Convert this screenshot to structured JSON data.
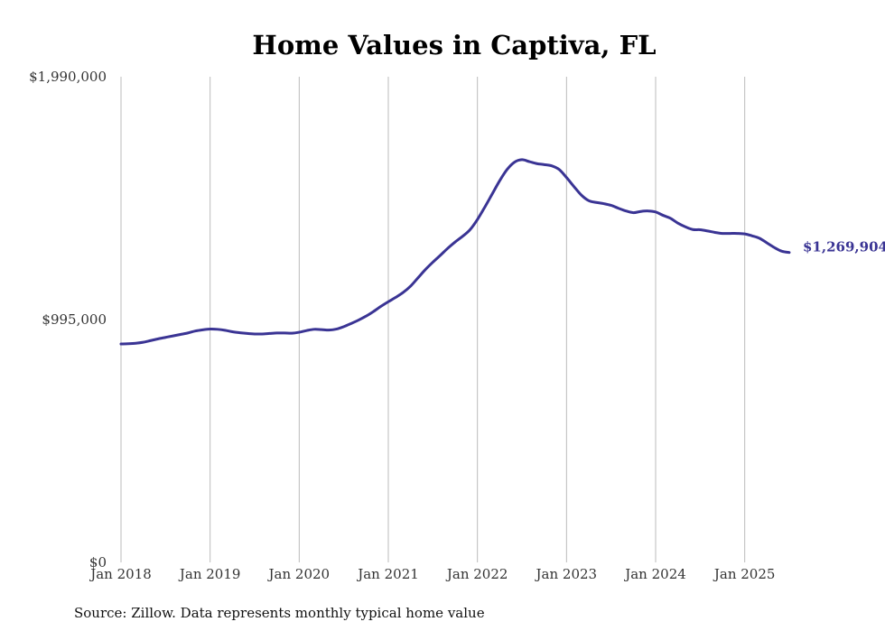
{
  "chart_data": {
    "type": "line",
    "title": "Home Values in Captiva, FL",
    "xlabel": "",
    "ylabel": "",
    "ylim": [
      0,
      1990000
    ],
    "y_ticks": [
      "$0",
      "$995,000",
      "$1,990,000"
    ],
    "y_tick_values": [
      0,
      995000,
      1990000
    ],
    "x_range": [
      "2018-01",
      "2025-07"
    ],
    "x_ticks": [
      "Jan 2018",
      "Jan 2019",
      "Jan 2020",
      "Jan 2021",
      "Jan 2022",
      "Jan 2023",
      "Jan 2024",
      "Jan 2025"
    ],
    "x_tick_dates": [
      "2018-01",
      "2019-01",
      "2020-01",
      "2021-01",
      "2022-01",
      "2023-01",
      "2024-01",
      "2025-01"
    ],
    "grid": "vertical",
    "color": "#3a3494",
    "end_label": "$1,269,904",
    "series": [
      {
        "x": [
          "2018-01",
          "2018-02",
          "2018-03",
          "2018-04",
          "2018-05",
          "2018-06",
          "2018-07",
          "2018-08",
          "2018-09",
          "2018-10",
          "2018-11",
          "2018-12",
          "2019-01",
          "2019-02",
          "2019-03",
          "2019-04",
          "2019-05",
          "2019-06",
          "2019-07",
          "2019-08",
          "2019-09",
          "2019-10",
          "2019-11",
          "2019-12",
          "2020-01",
          "2020-02",
          "2020-03",
          "2020-04",
          "2020-05",
          "2020-06",
          "2020-07",
          "2020-08",
          "2020-09",
          "2020-10",
          "2020-11",
          "2020-12",
          "2021-01",
          "2021-02",
          "2021-03",
          "2021-04",
          "2021-05",
          "2021-06",
          "2021-07",
          "2021-08",
          "2021-09",
          "2021-10",
          "2021-11",
          "2021-12",
          "2022-01",
          "2022-02",
          "2022-03",
          "2022-04",
          "2022-05",
          "2022-06",
          "2022-07",
          "2022-08",
          "2022-09",
          "2022-10",
          "2022-11",
          "2022-12",
          "2023-01",
          "2023-02",
          "2023-03",
          "2023-04",
          "2023-05",
          "2023-06",
          "2023-07",
          "2023-08",
          "2023-09",
          "2023-10",
          "2023-11",
          "2023-12",
          "2024-01",
          "2024-02",
          "2024-03",
          "2024-04",
          "2024-05",
          "2024-06",
          "2024-07",
          "2024-08",
          "2024-09",
          "2024-10",
          "2024-11",
          "2024-12",
          "2025-01",
          "2025-02",
          "2025-03",
          "2025-04",
          "2025-05",
          "2025-06",
          "2025-07"
        ],
        "values": [
          895000,
          896000,
          898000,
          902000,
          909000,
          916000,
          922000,
          928000,
          934000,
          940000,
          948000,
          953000,
          956000,
          955000,
          951000,
          945000,
          941000,
          938000,
          936000,
          936000,
          938000,
          940000,
          940000,
          939000,
          943000,
          950000,
          955000,
          954000,
          952000,
          956000,
          966000,
          979000,
          993000,
          1009000,
          1028000,
          1049000,
          1068000,
          1086000,
          1106000,
          1132000,
          1166000,
          1200000,
          1230000,
          1258000,
          1287000,
          1313000,
          1336000,
          1363000,
          1405000,
          1456000,
          1510000,
          1564000,
          1610000,
          1640000,
          1650000,
          1642000,
          1634000,
          1630000,
          1625000,
          1610000,
          1577000,
          1540000,
          1505000,
          1482000,
          1475000,
          1470000,
          1463000,
          1451000,
          1440000,
          1433000,
          1438000,
          1440000,
          1436000,
          1422000,
          1410000,
          1390000,
          1375000,
          1364000,
          1363000,
          1358000,
          1352000,
          1348000,
          1348000,
          1348000,
          1346000,
          1338000,
          1328000,
          1309000,
          1290000,
          1275000,
          1269904
        ]
      }
    ]
  },
  "source_note": "Source: Zillow. Data represents monthly typical home value"
}
